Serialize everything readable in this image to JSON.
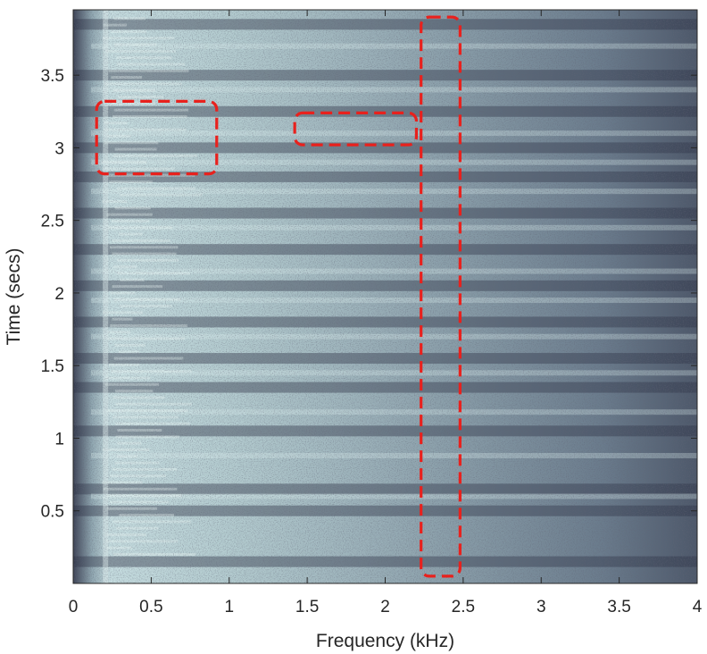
{
  "chart_data": {
    "type": "heatmap",
    "title": "",
    "xlabel": "Frequency (kHz)",
    "ylabel": "Time (secs)",
    "xlim": [
      0,
      4
    ],
    "ylim": [
      0,
      3.95
    ],
    "x_ticks": [
      0,
      0.5,
      1,
      1.5,
      2,
      2.5,
      3,
      3.5,
      4
    ],
    "x_tick_labels": [
      "0",
      "0.5",
      "1",
      "1.5",
      "2",
      "2.5",
      "3",
      "3.5",
      "4"
    ],
    "y_ticks": [
      0.5,
      1,
      1.5,
      2,
      2.5,
      3,
      3.5
    ],
    "y_tick_labels": [
      "0.5",
      "1",
      "1.5",
      "2",
      "2.5",
      "3",
      "3.5"
    ],
    "colormap": [
      "#2e3245",
      "#5d6b80",
      "#a3bcc2",
      "#dcefee"
    ],
    "dark_bands_secs": [
      0.15,
      0.5,
      0.65,
      1.05,
      1.35,
      1.55,
      1.8,
      2.05,
      2.3,
      2.55,
      2.8,
      3.0,
      3.25,
      3.5,
      3.85
    ],
    "bright_bands_secs": [
      0.6,
      0.88,
      1.18,
      1.45,
      1.7,
      1.95,
      2.15,
      2.45,
      2.7,
      2.9,
      3.1,
      3.4,
      3.7
    ],
    "highlight_regions": [
      {
        "x": [
          0.15,
          0.92
        ],
        "y": [
          2.82,
          3.32
        ]
      },
      {
        "x": [
          1.42,
          2.2
        ],
        "y": [
          3.02,
          3.24
        ]
      },
      {
        "x": [
          2.23,
          2.48
        ],
        "y": [
          0.05,
          3.9
        ]
      }
    ],
    "highlight_color": "#e8211d",
    "grid": false,
    "legend": "none"
  }
}
